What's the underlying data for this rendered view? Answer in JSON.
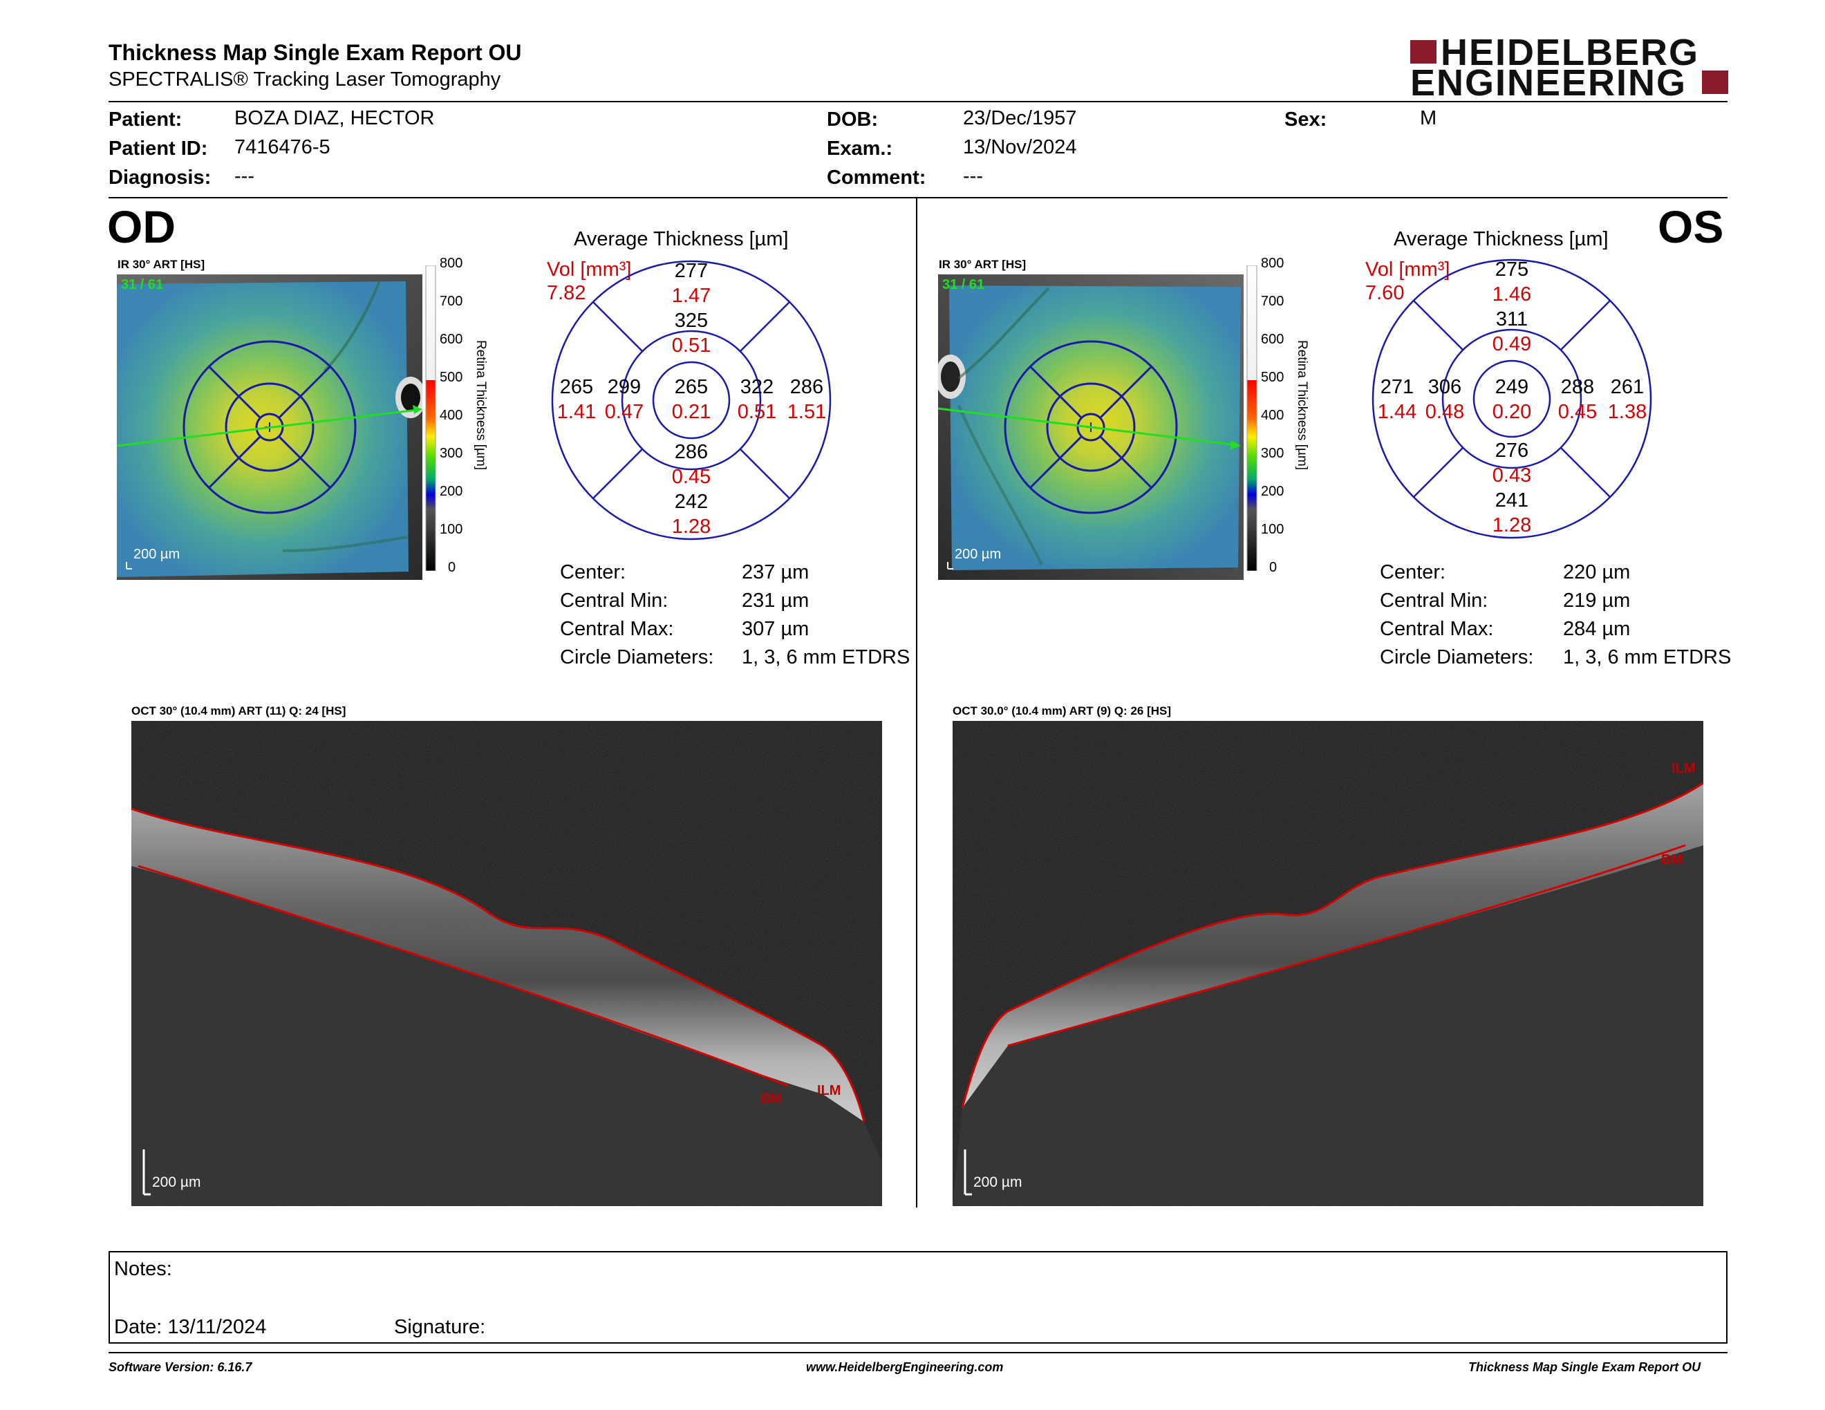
{
  "header": {
    "title": "Thickness Map Single Exam Report OU",
    "subtitle": "SPECTRALIS® Tracking Laser Tomography",
    "logo_line1": "HEIDELBERG",
    "logo_line2": "ENGINEERING"
  },
  "patient": {
    "patient_label": "Patient:",
    "patient_value": "BOZA DIAZ, HECTOR",
    "id_label": "Patient ID:",
    "id_value": "7416476-5",
    "diagnosis_label": "Diagnosis:",
    "diagnosis_value": "---",
    "dob_label": "DOB:",
    "dob_value": "23/Dec/1957",
    "exam_label": "Exam.:",
    "exam_value": "13/Nov/2024",
    "comment_label": "Comment:",
    "comment_value": "---",
    "sex_label": "Sex:",
    "sex_value": "M"
  },
  "scale": {
    "ticks": [
      "800",
      "700",
      "600",
      "500",
      "400",
      "300",
      "200",
      "100",
      "0"
    ],
    "title": "Retina Thickness [µm]"
  },
  "od": {
    "eye": "OD",
    "ir_label": "IR 30° ART [HS]",
    "ir_counter": "31 / 61",
    "ir_scale": "200 µm",
    "avg_title": "Average Thickness [µm]",
    "vol_label": "Vol [mm³]",
    "vol_value": "7.82",
    "grid": {
      "center": [
        "265",
        "0.21"
      ],
      "inner_sup": [
        "325",
        "0.51"
      ],
      "inner_inf": [
        "286",
        "0.45"
      ],
      "inner_nas_left": [
        "299",
        "0.47"
      ],
      "inner_temp_right": [
        "322",
        "0.51"
      ],
      "outer_sup": [
        "277",
        "1.47"
      ],
      "outer_inf": [
        "242",
        "1.28"
      ],
      "outer_left": [
        "265",
        "1.41"
      ],
      "outer_right": [
        "286",
        "1.51"
      ]
    },
    "stats": [
      {
        "label": "Center:",
        "value": "237 µm"
      },
      {
        "label": "Central Min:",
        "value": "231 µm"
      },
      {
        "label": "Central Max:",
        "value": "307 µm"
      },
      {
        "label": "Circle Diameters:",
        "value": "1, 3, 6 mm ETDRS"
      }
    ],
    "oct_label": "OCT 30° (10.4 mm) ART (11) Q: 24 [HS]",
    "oct_scale": "200 µm",
    "bm": "BM",
    "ilm": "ILM"
  },
  "os": {
    "eye": "OS",
    "ir_label": "IR 30° ART [HS]",
    "ir_counter": "31 / 61",
    "ir_scale": "200 µm",
    "avg_title": "Average Thickness [µm]",
    "vol_label": "Vol [mm³]",
    "vol_value": "7.60",
    "grid": {
      "center": [
        "249",
        "0.20"
      ],
      "inner_sup": [
        "311",
        "0.49"
      ],
      "inner_inf": [
        "276",
        "0.43"
      ],
      "inner_nas_left": [
        "306",
        "0.48"
      ],
      "inner_temp_right": [
        "288",
        "0.45"
      ],
      "outer_sup": [
        "275",
        "1.46"
      ],
      "outer_inf": [
        "241",
        "1.28"
      ],
      "outer_left": [
        "271",
        "1.44"
      ],
      "outer_right": [
        "261",
        "1.38"
      ]
    },
    "stats": [
      {
        "label": "Center:",
        "value": "220 µm"
      },
      {
        "label": "Central Min:",
        "value": "219 µm"
      },
      {
        "label": "Central Max:",
        "value": "284 µm"
      },
      {
        "label": "Circle Diameters:",
        "value": "1, 3, 6 mm ETDRS"
      }
    ],
    "oct_label": "OCT 30.0° (10.4 mm) ART (9) Q: 26 [HS]",
    "oct_scale": "200 µm",
    "bm": "BM",
    "ilm": "ILM"
  },
  "notes": {
    "notes_label": "Notes:",
    "date_label": "Date: 13/11/2024",
    "signature_label": "Signature:"
  },
  "footer": {
    "version": "Software Version: 6.16.7",
    "url": "www.HeidelbergEngineering.com",
    "report": "Thickness Map Single Exam Report OU"
  },
  "colors": {
    "red": "#d40000",
    "blue": "#1a1aa8",
    "logo": "#8b1a2b"
  }
}
